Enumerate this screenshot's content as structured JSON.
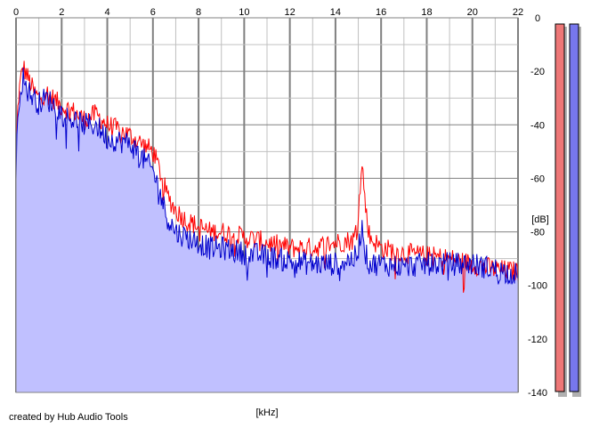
{
  "footer": {
    "credit": "created by Hub Audio Tools"
  },
  "colors": {
    "left_channel": "#ff0000",
    "right_channel": "#0000cc",
    "fill": "#c0c0ff",
    "grid": "#c0c0c0",
    "major_grid": "#808080",
    "meter_left": "#ee7777",
    "meter_right": "#7777ee"
  },
  "chart_data": {
    "type": "line",
    "xlabel": "[kHz]",
    "ylabel": "[dB]",
    "xlim": [
      0,
      22
    ],
    "ylim": [
      -140,
      0
    ],
    "x_ticks": [
      "0",
      "2",
      "4",
      "6",
      "8",
      "10",
      "12",
      "14",
      "16",
      "18",
      "20",
      "22"
    ],
    "y_ticks": [
      "0",
      "-20",
      "-40",
      "-60",
      "-80",
      "-100",
      "-120",
      "-140"
    ],
    "grid": true,
    "series": [
      {
        "channel": "left",
        "color": "#ff0000",
        "x": [
          0,
          0.1,
          0.3,
          0.5,
          0.8,
          1.0,
          1.3,
          1.6,
          2.0,
          2.5,
          3.0,
          3.5,
          4.0,
          4.5,
          5.0,
          5.5,
          6.0,
          6.3,
          6.6,
          7.0,
          7.5,
          8.0,
          8.5,
          9.0,
          10.0,
          11.0,
          12.0,
          13.0,
          14.0,
          14.8,
          15.0,
          15.1,
          15.2,
          15.3,
          15.5,
          16.0,
          17.0,
          18.0,
          19.0,
          20.0,
          21.0,
          22.0
        ],
        "y": [
          -50,
          -30,
          -18,
          -22,
          -28,
          -30,
          -28,
          -30,
          -33,
          -35,
          -38,
          -36,
          -40,
          -42,
          -44,
          -47,
          -50,
          -57,
          -66,
          -72,
          -76,
          -78,
          -80,
          -80,
          -82,
          -84,
          -86,
          -86,
          -84,
          -83,
          -75,
          -60,
          -56,
          -70,
          -82,
          -86,
          -88,
          -89,
          -90,
          -92,
          -94,
          -95
        ]
      },
      {
        "channel": "right",
        "color": "#0000cc",
        "x": [
          0,
          0.1,
          0.3,
          0.5,
          0.8,
          1.0,
          1.3,
          1.6,
          2.0,
          2.5,
          3.0,
          3.5,
          4.0,
          4.5,
          5.0,
          5.5,
          6.0,
          6.3,
          6.6,
          7.0,
          7.5,
          8.0,
          8.5,
          9.0,
          10.0,
          11.0,
          12.0,
          13.0,
          14.0,
          14.8,
          15.0,
          15.1,
          15.2,
          15.3,
          15.5,
          16.0,
          17.0,
          18.0,
          19.0,
          20.0,
          21.0,
          22.0
        ],
        "y": [
          -58,
          -32,
          -22,
          -27,
          -30,
          -32,
          -30,
          -32,
          -36,
          -38,
          -40,
          -40,
          -45,
          -46,
          -47,
          -52,
          -57,
          -65,
          -74,
          -80,
          -82,
          -84,
          -86,
          -86,
          -88,
          -89,
          -91,
          -92,
          -92,
          -90,
          -88,
          -80,
          -78,
          -88,
          -92,
          -92,
          -93,
          -92,
          -92,
          -92,
          -94,
          -96
        ]
      }
    ],
    "level_meters": [
      {
        "channel": "left",
        "level": 1.0,
        "color": "#ee7777"
      },
      {
        "channel": "right",
        "level": 1.0,
        "color": "#7777ee"
      }
    ]
  }
}
